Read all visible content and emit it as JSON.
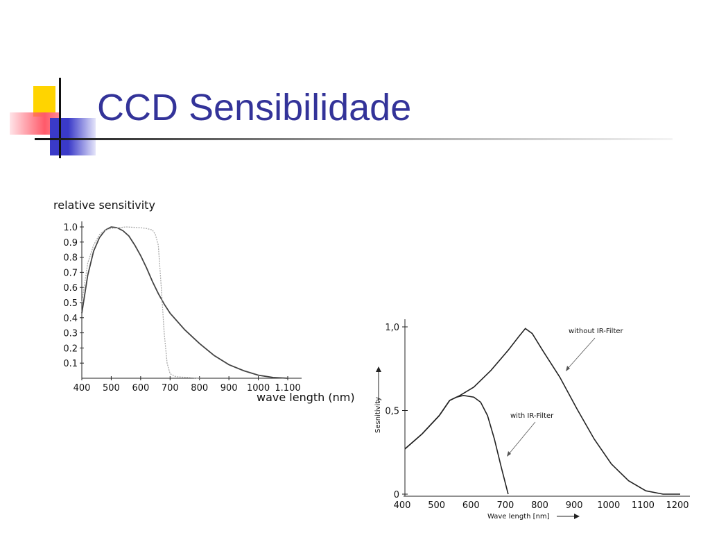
{
  "slide": {
    "title": "CCD Sensibilidade"
  },
  "chart_data": [
    {
      "type": "line",
      "title": "",
      "ylabel": "relative sensitivity",
      "xlabel": "wave length (nm)",
      "xlim": [
        400,
        1100
      ],
      "ylim": [
        0,
        1.0
      ],
      "x_ticks": [
        "400",
        "500",
        "600",
        "700",
        "800",
        "900",
        "1000",
        "1.100"
      ],
      "y_ticks": [
        "1.0",
        "0.9",
        "0.8",
        "0.7",
        "0.6",
        "0.5",
        "0.4",
        "0.3",
        "0.2",
        "0.1"
      ],
      "series": [
        {
          "style": "solid dark",
          "x": [
            400,
            420,
            440,
            460,
            480,
            500,
            520,
            540,
            560,
            580,
            600,
            620,
            640,
            660,
            680,
            700,
            750,
            800,
            850,
            900,
            950,
            1000,
            1050,
            1100
          ],
          "y": [
            0.43,
            0.68,
            0.84,
            0.93,
            0.98,
            1.0,
            0.995,
            0.975,
            0.94,
            0.88,
            0.81,
            0.73,
            0.64,
            0.56,
            0.49,
            0.43,
            0.32,
            0.23,
            0.15,
            0.09,
            0.05,
            0.02,
            0.005,
            0.0
          ]
        },
        {
          "style": "dotted light",
          "x": [
            400,
            420,
            440,
            460,
            480,
            500,
            550,
            600,
            620,
            640,
            650,
            660,
            670,
            680,
            690,
            700,
            720,
            800
          ],
          "y": [
            0.5,
            0.76,
            0.88,
            0.95,
            0.98,
            0.99,
            1.0,
            0.995,
            0.99,
            0.98,
            0.95,
            0.88,
            0.6,
            0.3,
            0.1,
            0.03,
            0.01,
            0.0
          ]
        }
      ],
      "grid": false,
      "legend": null
    },
    {
      "type": "line",
      "title": "",
      "ylabel": "Sesnitivity",
      "xlabel": "Wave length [nm]",
      "xlim": [
        400,
        1200
      ],
      "ylim": [
        0,
        1.0
      ],
      "x_ticks": [
        "400",
        "500",
        "600",
        "700",
        "800",
        "900",
        "1000",
        "1100",
        "1200"
      ],
      "y_ticks": [
        "0",
        "0,5",
        "1,0"
      ],
      "series": [
        {
          "name": "without IR-Filter",
          "x": [
            400,
            450,
            500,
            530,
            560,
            600,
            650,
            700,
            730,
            750,
            770,
            800,
            850,
            900,
            950,
            1000,
            1050,
            1100,
            1150,
            1200
          ],
          "y": [
            0.27,
            0.36,
            0.47,
            0.56,
            0.59,
            0.64,
            0.74,
            0.86,
            0.94,
            0.99,
            0.96,
            0.86,
            0.7,
            0.51,
            0.33,
            0.18,
            0.08,
            0.02,
            0.0,
            0.0
          ]
        },
        {
          "name": "with IR-Filter",
          "x": [
            400,
            450,
            500,
            530,
            550,
            570,
            600,
            620,
            640,
            660,
            680,
            700
          ],
          "y": [
            0.27,
            0.36,
            0.47,
            0.56,
            0.58,
            0.59,
            0.58,
            0.55,
            0.47,
            0.33,
            0.16,
            0.0
          ]
        }
      ],
      "annotations": [
        "without IR-Filter",
        "with IR-Filter"
      ],
      "grid": false,
      "legend": null
    }
  ]
}
